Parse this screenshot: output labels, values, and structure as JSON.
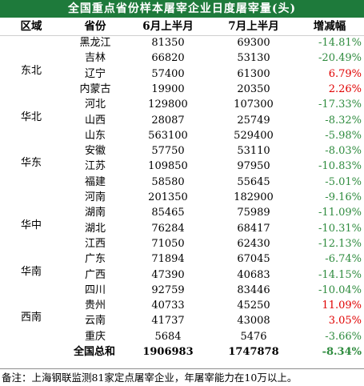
{
  "title": "全国重点省份样本屠宰企业日度屠宰量(头)",
  "headers": {
    "region": "区域",
    "province": "省份",
    "june": "6月上半月",
    "july": "7月上半月",
    "change": "增减幅"
  },
  "regions": [
    {
      "name": "东北",
      "row_index": 2
    },
    {
      "name": "华北",
      "row_index": 5
    },
    {
      "name": "华东",
      "row_index": 8
    },
    {
      "name": "华中",
      "row_index": 12
    },
    {
      "name": "华南",
      "row_index": 15
    },
    {
      "name": "西南",
      "row_index": 18
    }
  ],
  "rows": [
    {
      "province": "黑龙江",
      "june": "81350",
      "july": "69300",
      "change": "-14.81%",
      "trend": "neg"
    },
    {
      "province": "吉林",
      "june": "66820",
      "july": "53130",
      "change": "-20.49%",
      "trend": "neg"
    },
    {
      "province": "辽宁",
      "june": "57400",
      "july": "61300",
      "change": "6.79%",
      "trend": "pos"
    },
    {
      "province": "内蒙古",
      "june": "19900",
      "july": "20350",
      "change": "2.26%",
      "trend": "pos"
    },
    {
      "province": "河北",
      "june": "129800",
      "july": "107300",
      "change": "-17.33%",
      "trend": "neg"
    },
    {
      "province": "山西",
      "june": "28087",
      "july": "25749",
      "change": "-8.32%",
      "trend": "neg"
    },
    {
      "province": "山东",
      "june": "563100",
      "july": "529400",
      "change": "-5.98%",
      "trend": "neg"
    },
    {
      "province": "安徽",
      "june": "57750",
      "july": "53110",
      "change": "-8.03%",
      "trend": "neg"
    },
    {
      "province": "江苏",
      "june": "109850",
      "july": "97950",
      "change": "-10.83%",
      "trend": "neg"
    },
    {
      "province": "福建",
      "june": "58580",
      "july": "55645",
      "change": "-5.01%",
      "trend": "neg"
    },
    {
      "province": "河南",
      "june": "201350",
      "july": "182900",
      "change": "-9.16%",
      "trend": "neg"
    },
    {
      "province": "湖南",
      "june": "85465",
      "july": "75989",
      "change": "-11.09%",
      "trend": "neg"
    },
    {
      "province": "湖北",
      "june": "76284",
      "july": "68417",
      "change": "-10.31%",
      "trend": "neg"
    },
    {
      "province": "江西",
      "june": "71050",
      "july": "62430",
      "change": "-12.13%",
      "trend": "neg"
    },
    {
      "province": "广东",
      "june": "71894",
      "july": "67045",
      "change": "-6.74%",
      "trend": "neg"
    },
    {
      "province": "广西",
      "june": "47390",
      "july": "40683",
      "change": "-14.15%",
      "trend": "neg"
    },
    {
      "province": "四川",
      "june": "92759",
      "july": "83446",
      "change": "-10.04%",
      "trend": "neg"
    },
    {
      "province": "贵州",
      "june": "40733",
      "july": "45250",
      "change": "11.09%",
      "trend": "pos"
    },
    {
      "province": "云南",
      "june": "41737",
      "july": "43008",
      "change": "3.05%",
      "trend": "pos"
    },
    {
      "province": "重庆",
      "june": "5684",
      "july": "5476",
      "change": "-3.66%",
      "trend": "neg"
    }
  ],
  "total": {
    "label": "全国总和",
    "june": "1906983",
    "july": "1747878",
    "change": "-8.34%",
    "trend": "neg"
  },
  "note": "备注：上海钢联监测81家定点屠宰企业，年屠宰能力在10万以上。",
  "colors": {
    "title_bg": "#1e7a3b",
    "negative": "#2e8b3e",
    "positive": "#e00000"
  }
}
